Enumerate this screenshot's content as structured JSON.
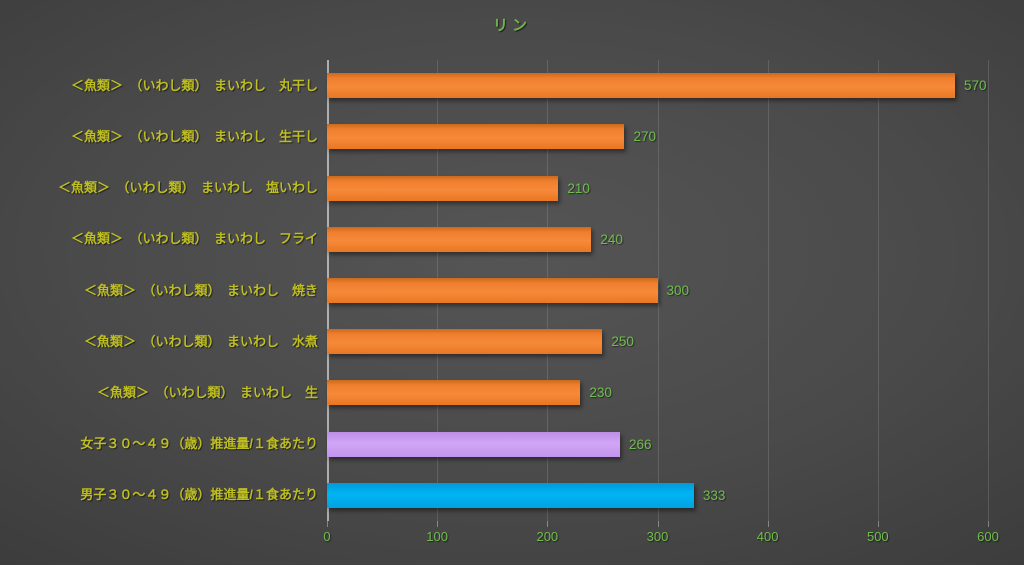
{
  "chart_data": {
    "type": "bar",
    "orientation": "horizontal",
    "title": "リン",
    "categories": [
      "＜魚類＞　（いわし類）　まいわし　丸干し",
      "＜魚類＞　（いわし類）　まいわし　生干し",
      "＜魚類＞　（いわし類）　まいわし　塩いわし",
      "＜魚類＞　（いわし類）　まいわし　フライ",
      "＜魚類＞　（いわし類）　まいわし　焼き",
      "＜魚類＞　（いわし類）　まいわし　水煮",
      "＜魚類＞　（いわし類）　まいわし　生",
      "女子３０～４９（歳）推進量/１食あたり",
      "男子３０～４９（歳）推進量/１食あたり"
    ],
    "values": [
      570,
      270,
      210,
      240,
      300,
      250,
      230,
      266,
      333
    ],
    "bar_styles": [
      "orange",
      "orange",
      "orange",
      "orange",
      "orange",
      "orange",
      "orange",
      "purple",
      "blue"
    ],
    "data_labels_shown": true,
    "xlabel": "",
    "ylabel": "",
    "xlim": [
      0,
      600
    ],
    "x_ticks": [
      0,
      100,
      200,
      300,
      400,
      500,
      600
    ],
    "grid": true,
    "legend_position": "none",
    "colors": {
      "background_center": "#4f4f4f",
      "background_edge": "#262626",
      "series_fish": "#ED7D31",
      "series_female": "#CC9DF3",
      "series_male": "#00B0F0",
      "title_text": "#72b34a",
      "category_text": "#bebe23",
      "value_text": "#6fbe4c",
      "tick_text": "#6fbe4c",
      "gridline": "rgba(255,255,255,0.13)"
    }
  }
}
